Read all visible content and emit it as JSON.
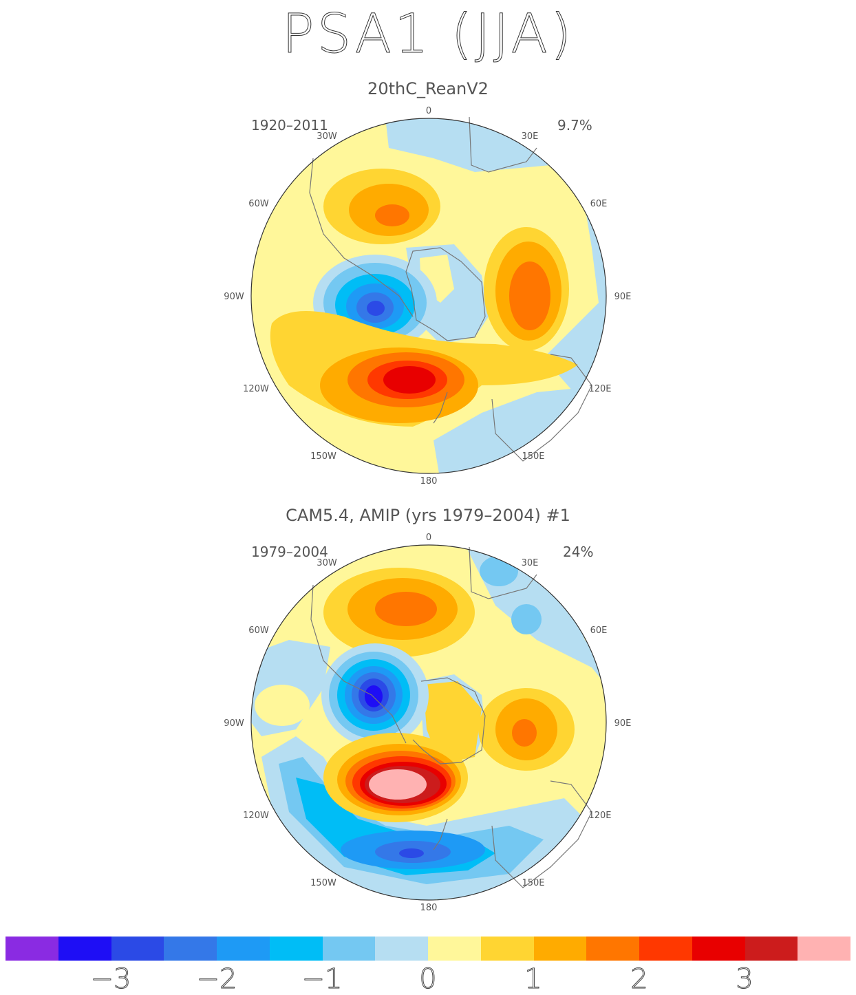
{
  "title": "PSA1 (JJA)",
  "panels": [
    {
      "subtitle": "20thC_ReanV2",
      "period": "1920–2011",
      "variance": "9.7%",
      "lon_labels": [
        "0",
        "30E",
        "60E",
        "90E",
        "120E",
        "150E",
        "180",
        "150W",
        "120W",
        "90W",
        "60W",
        "30W"
      ]
    },
    {
      "subtitle": "CAM5.4, AMIP (yrs 1979–2004)     #1",
      "period": "1979–2004",
      "variance": "24%",
      "lon_labels": [
        "0",
        "30E",
        "60E",
        "90E",
        "120E",
        "150E",
        "180",
        "150W",
        "120W",
        "90W",
        "60W",
        "30W"
      ]
    }
  ],
  "colorbar": {
    "colors": [
      "#8a2be2",
      "#1e0ef5",
      "#2b4ae6",
      "#3478e8",
      "#1e9af5",
      "#00bdf6",
      "#74c8f2",
      "#b6def2",
      "#fff79a",
      "#ffd532",
      "#ffab00",
      "#ff7600",
      "#ff3800",
      "#e80000",
      "#cc1c1c",
      "#ffb2b2"
    ],
    "labels": [
      "−3",
      "−2",
      "−1",
      "0",
      "1",
      "2",
      "3"
    ]
  }
}
